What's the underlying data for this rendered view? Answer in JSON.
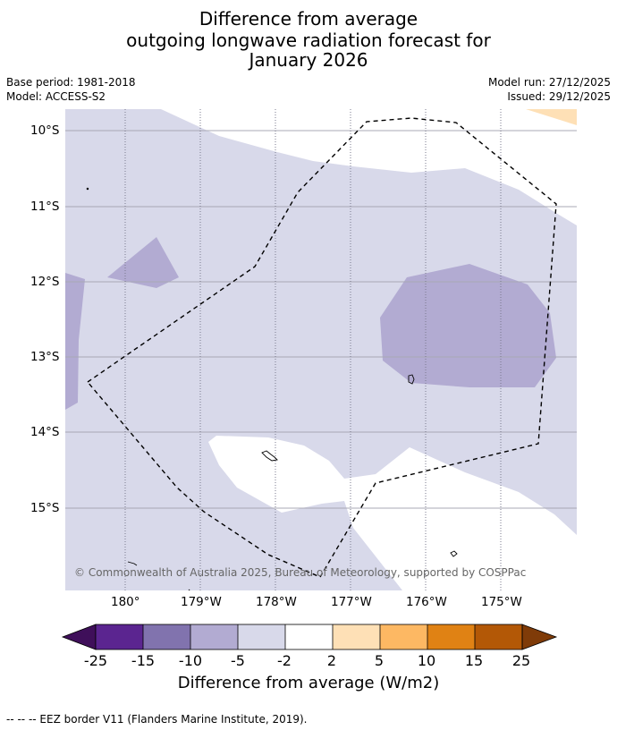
{
  "title": {
    "line1": "Difference from average",
    "line2": "outgoing longwave radiation forecast for",
    "line3": "January 2026"
  },
  "meta": {
    "base_period": "Base period: 1981-2018",
    "model": "Model: ACCESS-S2",
    "model_run": "Model run: 27/12/2025",
    "issued": "Issued: 29/12/2025"
  },
  "map": {
    "lat_labels": [
      "10°S",
      "11°S",
      "12°S",
      "13°S",
      "14°S",
      "15°S"
    ],
    "lon_labels": [
      "180°",
      "179°W",
      "178°W",
      "177°W",
      "176°W",
      "175°W"
    ],
    "copyright": "© Commonwealth of Australia 2025, Bureau of Meteorology, supported by COSPPac"
  },
  "colorbar": {
    "labels": [
      "-25",
      "-15",
      "-10",
      "-5",
      "-2",
      "2",
      "5",
      "10",
      "15",
      "25"
    ],
    "colors": [
      "#3f0f5a",
      "#5b2590",
      "#8173ae",
      "#b2abd2",
      "#d8d9ea",
      "#ffffff",
      "#fee0b6",
      "#fdb863",
      "#e08214",
      "#b35806",
      "#7f3b08"
    ],
    "title": "Difference from average (W/m2)"
  },
  "footer": {
    "legend": "--  --  -- EEZ border V11 (Flanders Marine Institute, 2019)."
  }
}
